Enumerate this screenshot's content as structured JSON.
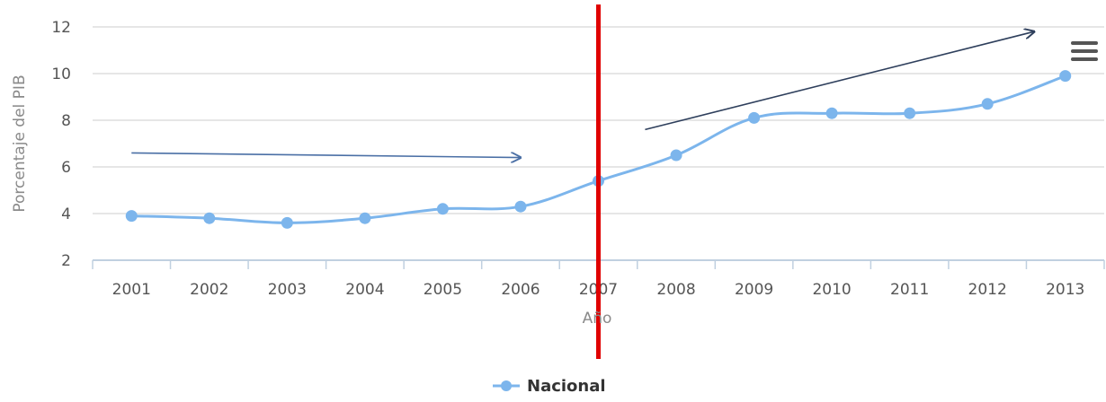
{
  "chart_data": {
    "type": "line",
    "title": "",
    "xlabel": "Año",
    "ylabel": "Porcentaje del PIB",
    "categories": [
      "2001",
      "2002",
      "2003",
      "2004",
      "2005",
      "2006",
      "2007",
      "2008",
      "2009",
      "2010",
      "2011",
      "2012",
      "2013"
    ],
    "series": [
      {
        "name": "Nacional",
        "values": [
          3.9,
          3.8,
          3.6,
          3.8,
          4.2,
          4.3,
          5.4,
          6.5,
          8.1,
          8.3,
          8.3,
          8.7,
          9.9
        ],
        "color": "#7cb5ec"
      }
    ],
    "ylim": [
      2,
      12
    ],
    "yticks": [
      2,
      4,
      6,
      8,
      10,
      12
    ],
    "grid": true,
    "legend_position": "bottom-center",
    "annotations": {
      "vertical_marker": {
        "x": "2007",
        "color": "#e00000"
      },
      "arrows": [
        {
          "from": {
            "x": 2001,
            "y": 6.6
          },
          "to": {
            "x": 2006,
            "y": 6.4
          },
          "color": "#4a6fa5"
        },
        {
          "from": {
            "x": 2007.6,
            "y": 7.6
          },
          "to": {
            "x": 2012.6,
            "y": 11.8
          },
          "color": "#2e3f5c"
        }
      ]
    }
  },
  "menu_icon": "hamburger-menu-icon"
}
